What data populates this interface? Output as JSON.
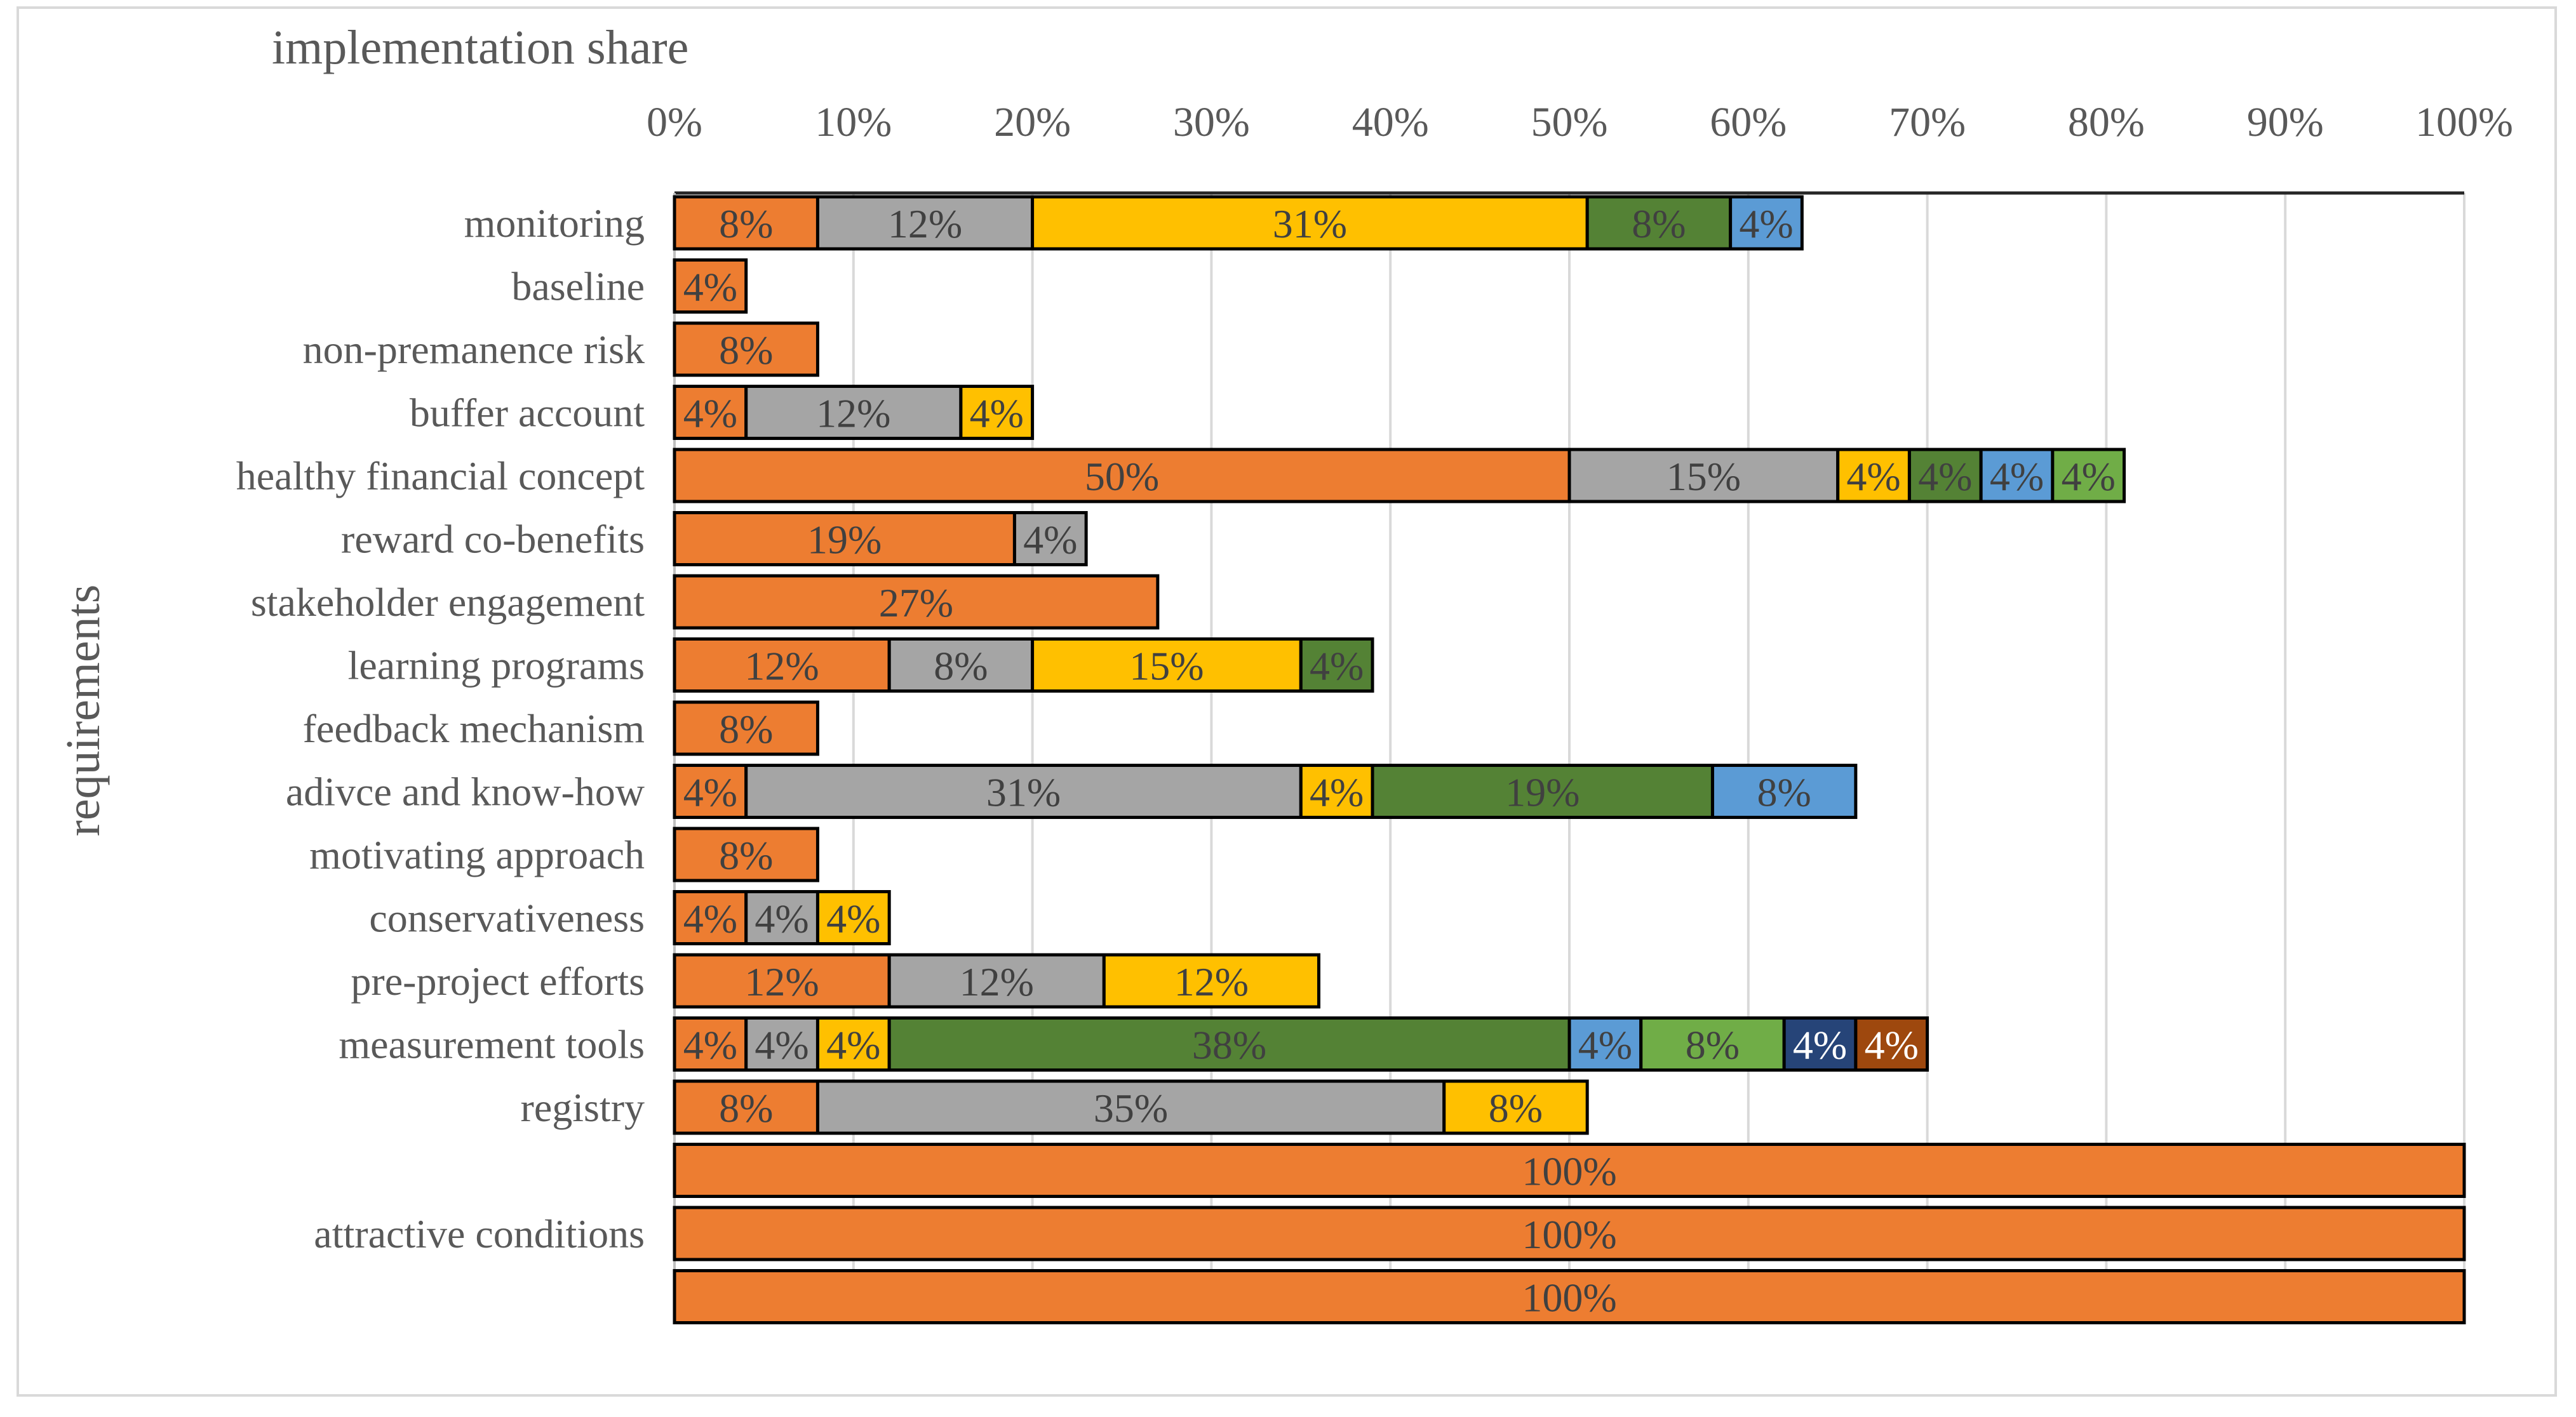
{
  "chart_data": {
    "type": "bar",
    "orientation": "horizontal",
    "stacked": true,
    "title": "implementation share",
    "xlabel": "implementation share",
    "ylabel": "requirements",
    "xlim": [
      0,
      100
    ],
    "x_ticks": [
      "0%",
      "10%",
      "20%",
      "30%",
      "40%",
      "50%",
      "60%",
      "70%",
      "80%",
      "90%",
      "100%"
    ],
    "grid": true,
    "series_colors": [
      "#ED7D31",
      "#A5A5A5",
      "#FFC000",
      "#548235",
      "#5B9BD5",
      "#70AD47",
      "#264478",
      "#9E480E"
    ],
    "rows": [
      {
        "category": "monitoring",
        "values": [
          8,
          12,
          31,
          8,
          4
        ],
        "labels": [
          "8%",
          "12%",
          "31%",
          "8%",
          "4%"
        ],
        "series": [
          0,
          1,
          2,
          3,
          4
        ]
      },
      {
        "category": "baseline",
        "values": [
          4
        ],
        "labels": [
          "4%"
        ],
        "series": [
          0
        ]
      },
      {
        "category": "non-premanence risk",
        "values": [
          8
        ],
        "labels": [
          "8%"
        ],
        "series": [
          0
        ]
      },
      {
        "category": "buffer account",
        "values": [
          4,
          12,
          4
        ],
        "labels": [
          "4%",
          "12%",
          "4%"
        ],
        "series": [
          0,
          1,
          2
        ]
      },
      {
        "category": "healthy financial concept",
        "values": [
          50,
          15,
          4,
          4,
          4,
          4
        ],
        "labels": [
          "50%",
          "15%",
          "4%",
          "4%",
          "4%",
          "4%"
        ],
        "series": [
          0,
          1,
          2,
          3,
          4,
          5
        ]
      },
      {
        "category": "reward co-benefits",
        "values": [
          19,
          4
        ],
        "labels": [
          "19%",
          "4%"
        ],
        "series": [
          0,
          1
        ]
      },
      {
        "category": "stakeholder engagement",
        "values": [
          27
        ],
        "labels": [
          "27%"
        ],
        "series": [
          0
        ]
      },
      {
        "category": "learning programs",
        "values": [
          12,
          8,
          15,
          4
        ],
        "labels": [
          "12%",
          "8%",
          "15%",
          "4%"
        ],
        "series": [
          0,
          1,
          2,
          3
        ]
      },
      {
        "category": "feedback mechanism",
        "values": [
          8
        ],
        "labels": [
          "8%"
        ],
        "series": [
          0
        ]
      },
      {
        "category": "adivce and know-how",
        "values": [
          4,
          31,
          4,
          19,
          8
        ],
        "labels": [
          "4%",
          "31%",
          "4%",
          "19%",
          "8%"
        ],
        "series": [
          0,
          1,
          2,
          3,
          4
        ]
      },
      {
        "category": "motivating approach",
        "values": [
          8
        ],
        "labels": [
          "8%"
        ],
        "series": [
          0
        ]
      },
      {
        "category": "conservativeness",
        "values": [
          4,
          4,
          4
        ],
        "labels": [
          "4%",
          "4%",
          "4%"
        ],
        "series": [
          0,
          1,
          2
        ]
      },
      {
        "category": "pre-project efforts",
        "values": [
          12,
          12,
          12
        ],
        "labels": [
          "12%",
          "12%",
          "12%"
        ],
        "series": [
          0,
          1,
          2
        ]
      },
      {
        "category": "measurement tools",
        "values": [
          4,
          4,
          4,
          38,
          4,
          8,
          4,
          4
        ],
        "labels": [
          "4%",
          "4%",
          "4%",
          "38%",
          "4%",
          "8%",
          "4%",
          "4%"
        ],
        "series": [
          0,
          1,
          2,
          3,
          4,
          5,
          6,
          7
        ]
      },
      {
        "category": "registry",
        "values": [
          8,
          35,
          8
        ],
        "labels": [
          "8%",
          "35%",
          "8%"
        ],
        "series": [
          0,
          1,
          2
        ]
      },
      {
        "category": "",
        "values": [
          100
        ],
        "labels": [
          "100%"
        ],
        "series": [
          0
        ]
      },
      {
        "category": "attractive conditions",
        "values": [
          100
        ],
        "labels": [
          "100%"
        ],
        "series": [
          0
        ]
      },
      {
        "category": "",
        "values": [
          100
        ],
        "labels": [
          "100%"
        ],
        "series": [
          0
        ]
      }
    ]
  }
}
